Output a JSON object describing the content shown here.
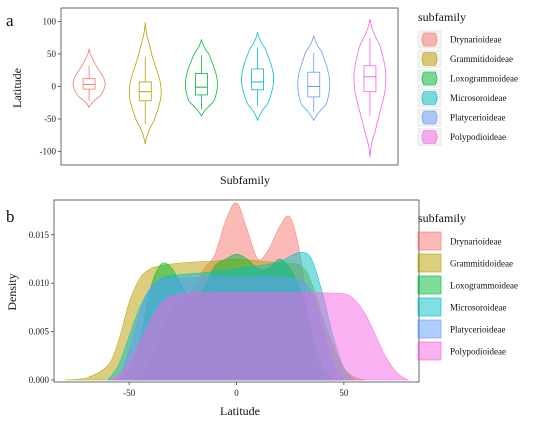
{
  "chart_data": [
    {
      "panel_label": "a",
      "type": "violin",
      "xlabel": "Subfamily",
      "ylabel": "Latitude",
      "yticks": [
        -100,
        -50,
        0,
        50,
        100
      ],
      "ylim": [
        -110,
        110
      ],
      "legend_title": "subfamily",
      "legend_position": "right",
      "series": [
        {
          "name": "Drynarioideae",
          "color": "#F8766D",
          "min": -32,
          "max": 58,
          "q1": -4,
          "median": 3,
          "q3": 12,
          "wlo": -22,
          "whi": 32
        },
        {
          "name": "Grammitidoideae",
          "color": "#B79F00",
          "min": -88,
          "max": 98,
          "q1": -22,
          "median": -8,
          "q3": 7,
          "wlo": -58,
          "whi": 45
        },
        {
          "name": "Loxogrammoideae",
          "color": "#00BA38",
          "min": -45,
          "max": 72,
          "q1": -13,
          "median": -1,
          "q3": 20,
          "wlo": -35,
          "whi": 48
        },
        {
          "name": "Microsoroideae",
          "color": "#00BFC4",
          "min": -52,
          "max": 83,
          "q1": -5,
          "median": 7,
          "q3": 27,
          "wlo": -30,
          "whi": 60
        },
        {
          "name": "Platycerioideae",
          "color": "#619CFF",
          "min": -52,
          "max": 78,
          "q1": -16,
          "median": 0,
          "q3": 22,
          "wlo": -40,
          "whi": 52
        },
        {
          "name": "Polypodioideae",
          "color": "#F564E3",
          "min": -108,
          "max": 103,
          "q1": -8,
          "median": 15,
          "q3": 32,
          "wlo": -45,
          "whi": 75
        }
      ]
    },
    {
      "panel_label": "b",
      "type": "area",
      "xlabel": "Latitude",
      "ylabel": "Density",
      "xticks": [
        -50,
        0,
        50
      ],
      "yticks": [
        "0.000",
        "0.005",
        "0.010",
        "0.015"
      ],
      "xlim": [
        -85,
        85
      ],
      "ylim": [
        0,
        0.0185
      ],
      "legend_title": "subfamily",
      "legend_position": "right",
      "series": [
        {
          "name": "Drynarioideae",
          "color": "#F8766D",
          "x": [
            -46,
            -40,
            -35,
            -30,
            -25,
            -20,
            -15,
            -10,
            -5,
            0,
            5,
            10,
            15,
            20,
            25,
            30,
            35,
            40
          ],
          "y": [
            0,
            0.002,
            0.005,
            0.0075,
            0.0085,
            0.0095,
            0.0115,
            0.013,
            0.0165,
            0.0183,
            0.0155,
            0.0125,
            0.0135,
            0.0158,
            0.0168,
            0.0125,
            0.004,
            0
          ]
        },
        {
          "name": "Grammitidoideae",
          "color": "#B79F00",
          "x": [
            -80,
            -70,
            -60,
            -55,
            -50,
            -45,
            -40,
            -35,
            -30,
            -20,
            -10,
            0,
            10,
            20,
            30,
            35,
            40,
            45,
            50,
            55,
            60
          ],
          "y": [
            0,
            0.0002,
            0.0015,
            0.004,
            0.008,
            0.0105,
            0.0115,
            0.0118,
            0.012,
            0.0122,
            0.0123,
            0.0125,
            0.0123,
            0.0121,
            0.0118,
            0.01,
            0.0065,
            0.0035,
            0.0012,
            0.0003,
            0
          ]
        },
        {
          "name": "Loxogrammoideae",
          "color": "#00BA38",
          "x": [
            -55,
            -50,
            -45,
            -40,
            -35,
            -30,
            -25,
            -20,
            -15,
            -10,
            -5,
            0,
            5,
            10,
            15,
            20,
            25,
            30,
            35,
            40,
            45
          ],
          "y": [
            0,
            0.001,
            0.004,
            0.0095,
            0.012,
            0.0115,
            0.0095,
            0.0085,
            0.0095,
            0.0118,
            0.0125,
            0.013,
            0.0125,
            0.0115,
            0.0115,
            0.0125,
            0.0115,
            0.009,
            0.005,
            0.0015,
            0
          ]
        },
        {
          "name": "Microsoroideae",
          "color": "#00BFC4",
          "x": [
            -60,
            -55,
            -50,
            -45,
            -40,
            -35,
            -30,
            -20,
            -10,
            0,
            10,
            20,
            25,
            30,
            35,
            40,
            45,
            50,
            55
          ],
          "y": [
            0,
            0.0015,
            0.0045,
            0.0075,
            0.0095,
            0.0105,
            0.0108,
            0.011,
            0.0112,
            0.0115,
            0.0118,
            0.0122,
            0.0128,
            0.0132,
            0.0125,
            0.009,
            0.0045,
            0.0012,
            0
          ]
        },
        {
          "name": "Platycerioideae",
          "color": "#619CFF",
          "x": [
            -55,
            -50,
            -45,
            -40,
            -35,
            -30,
            -20,
            -10,
            0,
            10,
            20,
            30,
            35,
            40,
            45,
            50
          ],
          "y": [
            0,
            0.003,
            0.007,
            0.0095,
            0.0105,
            0.0105,
            0.0106,
            0.0107,
            0.0106,
            0.0107,
            0.0106,
            0.0103,
            0.009,
            0.0055,
            0.0018,
            0
          ]
        },
        {
          "name": "Polypodioideae",
          "color": "#F564E3",
          "x": [
            -58,
            -52,
            -46,
            -40,
            -34,
            -28,
            -22,
            -10,
            0,
            10,
            20,
            30,
            40,
            50,
            55,
            60,
            65,
            70,
            75,
            80
          ],
          "y": [
            0,
            0.0012,
            0.0035,
            0.0062,
            0.0082,
            0.0088,
            0.009,
            0.009,
            0.009,
            0.009,
            0.009,
            0.009,
            0.009,
            0.0089,
            0.0083,
            0.0068,
            0.0045,
            0.0022,
            0.0007,
            0
          ]
        }
      ]
    }
  ]
}
